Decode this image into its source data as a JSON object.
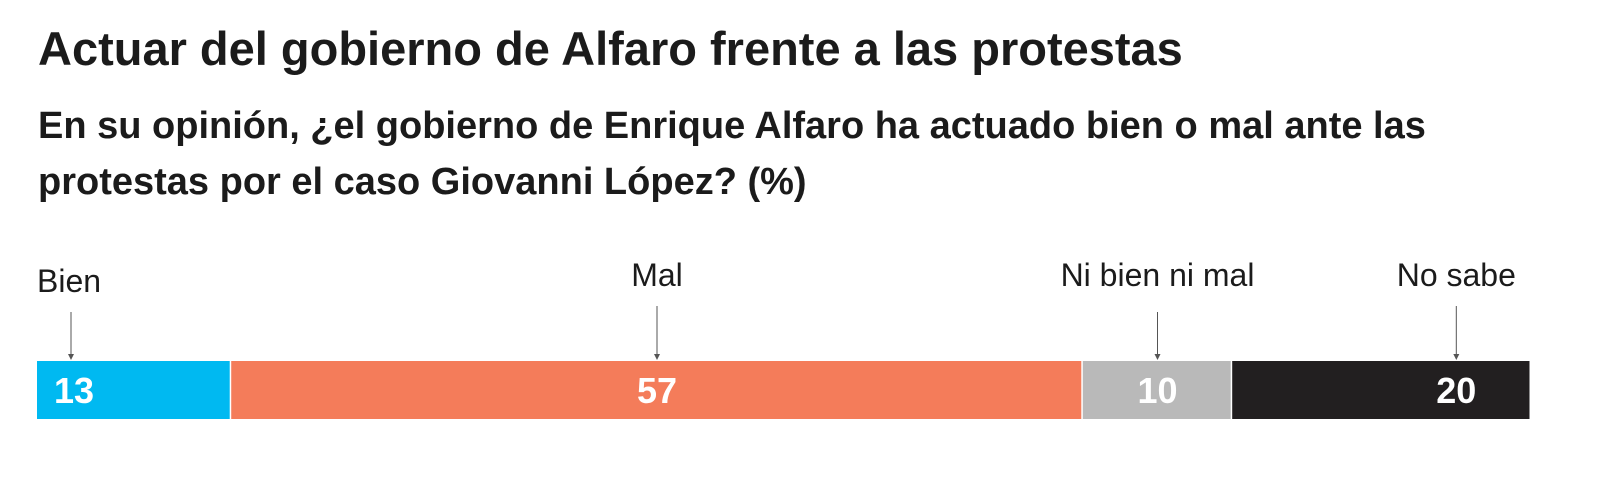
{
  "title": "Actuar del gobierno de Alfaro frente a las protestas",
  "subtitle": "En su opinión, ¿el gobierno de Enrique Alfaro ha actuado bien o mal ante las protestas por el caso Giovanni López? (%)",
  "chart_data": {
    "type": "bar",
    "stacked": true,
    "orientation": "horizontal",
    "title": "Actuar del gobierno de Alfaro frente a las protestas",
    "subtitle": "En su opinión, ¿el gobierno de Enrique Alfaro ha actuado bien o mal ante las protestas por el caso Giovanni López? (%)",
    "xlim": [
      0,
      100
    ],
    "grid": false,
    "categories": [
      "Bien",
      "Mal",
      "Ni bien ni mal",
      "No sabe"
    ],
    "values": [
      13,
      57,
      10,
      20
    ],
    "colors": [
      "#00b9f1",
      "#f47c5a",
      "#b9b9b9",
      "#221f20"
    ]
  }
}
